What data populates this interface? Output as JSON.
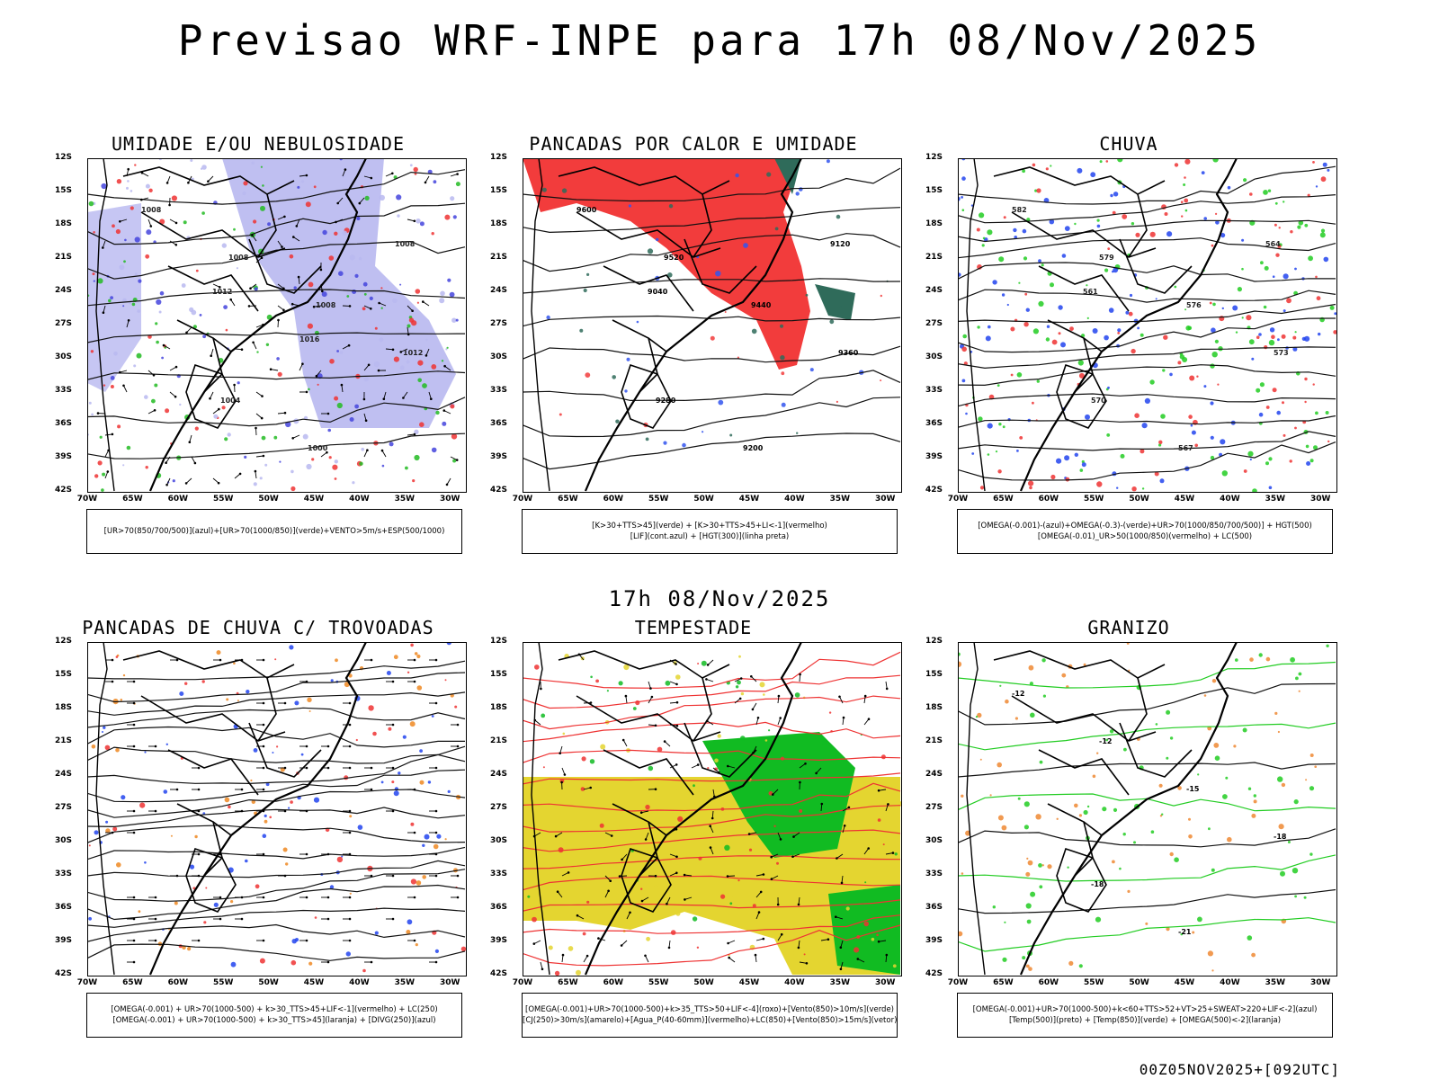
{
  "title": "Previsao WRF-INPE  para 17h 08/Nov/2025",
  "mid_time": "17h 08/Nov/2025",
  "run_stamp": "00Z05NOV2025+[092UTC]",
  "lat_labels": [
    "12S",
    "15S",
    "18S",
    "21S",
    "24S",
    "27S",
    "30S",
    "33S",
    "36S",
    "39S",
    "42S"
  ],
  "lon_labels": [
    "70W",
    "65W",
    "60W",
    "55W",
    "50W",
    "45W",
    "40W",
    "35W",
    "30W"
  ],
  "panels": [
    {
      "id": "umidade",
      "title": "UMIDADE E/OU NEBULOSIDADE",
      "legend": [
        "[UR>70(850/700/500)](azul)+[UR>70(1000/850)](verde)+VENTO>5m/s+ESP(500/1000)"
      ],
      "contour_labels": [
        "1008",
        "1008",
        "1008",
        "1012",
        "1004",
        "1000",
        "1008",
        "1012",
        "1016"
      ],
      "colors": {
        "fill": "#b8b8f0",
        "green": "#22bb22",
        "red": "#ee3333",
        "blue": "#4444dd"
      }
    },
    {
      "id": "pancadas-calor",
      "title": "PANCADAS POR CALOR E UMIDADE",
      "legend": [
        "[K>30+TTS>45](verde) + [K>30+TTS>45+LI<-1](vermelho)",
        "[LIF](cont.azul) + [HGT(300)](linha preta)"
      ],
      "contour_labels": [
        "9600",
        "9520",
        "9440",
        "9360",
        "9280",
        "9200",
        "9120",
        "9040"
      ],
      "colors": {
        "fill": "#f23c3c",
        "green": "#2f6b5a",
        "blue": "#3355ee"
      }
    },
    {
      "id": "chuva",
      "title": "CHUVA",
      "legend": [
        "[OMEGA(-0.001)-(azul)+OMEGA(-0.3)-(verde)+UR>70(1000/850/700/500)] + HGT(500)",
        "[OMEGA(-0.01)_UR>50(1000/850)(vermelho) + LC(500)"
      ],
      "contour_labels": [
        "582",
        "579",
        "576",
        "573",
        "570",
        "567",
        "564",
        "561"
      ],
      "colors": {
        "red": "#ee3333",
        "green": "#22cc22",
        "blue": "#2244ee"
      }
    },
    {
      "id": "pancadas-trovoadas",
      "title": "PANCADAS DE CHUVA C/ TROVOADAS",
      "legend": [
        "[OMEGA(-0.001) + UR>70(1000-500) + k>30_TTS>45+LIF<-1](vermelho) + LC(250)",
        "[OMEGA(-0.001) + UR>70(1000-500) + k>30_TTS>45](laranja) + [DIVG(250)](azul)"
      ],
      "contour_labels": [],
      "colors": {
        "red": "#ee3333",
        "orange": "#ee8822",
        "blue": "#2244ee"
      }
    },
    {
      "id": "tempestade",
      "title": "TEMPESTADE",
      "legend": [
        "[OMEGA(-0.001)+UR>70(1000-500)+k>35_TTS>50+LIF<-4](roxo)+[Vento(850)>10m/s](verde)",
        "[CJ(250)>30m/s](amarelo)+[Agua_P(40-60mm)](vermelho)+LC(850)+[Vento(850)>15m/s](vetor)"
      ],
      "contour_labels": [],
      "colors": {
        "yellow": "#e4d530",
        "green": "#11bb22",
        "red": "#ee3333"
      }
    },
    {
      "id": "granizo",
      "title": "GRANIZO",
      "legend": [
        "[OMEGA(-0.001)+UR>70(1000-500)+k<60+TTS>52+VT>25+SWEAT>220+LIF<-2](azul)",
        "[Temp(500)](preto) + [Temp(850)](verde) + [OMEGA(500)<-2](laranja)"
      ],
      "contour_labels": [
        "-12",
        "-12",
        "-15",
        "-18",
        "-18",
        "-21"
      ],
      "colors": {
        "green": "#22cc22",
        "orange": "#ee8833"
      }
    }
  ]
}
